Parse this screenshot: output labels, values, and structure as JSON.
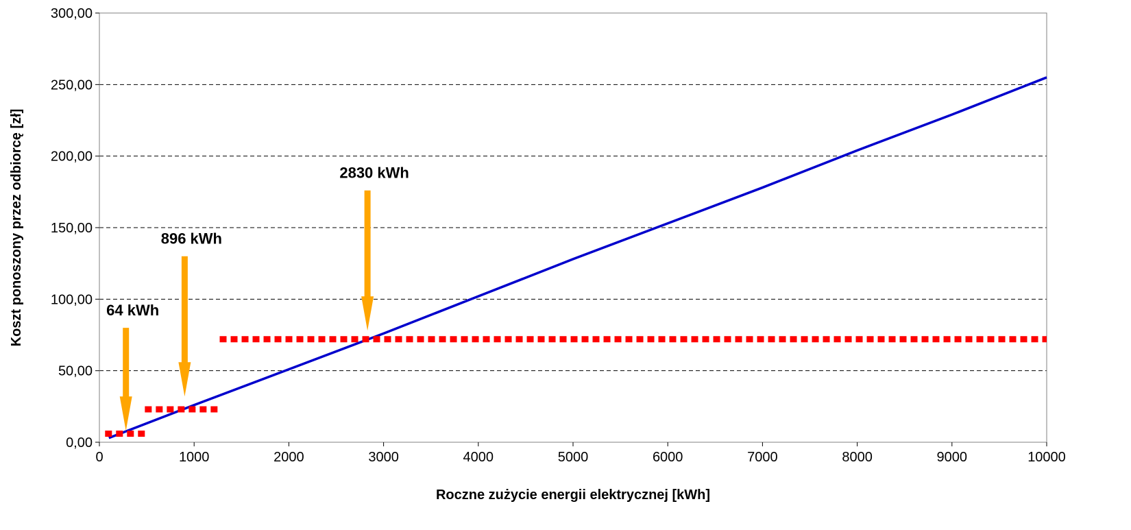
{
  "chart_data": {
    "type": "line",
    "title": "",
    "xlabel": "Roczne zużycie energii elektrycznej [kWh]",
    "ylabel": "Koszt ponoszony przez odbiorcę [zł]",
    "xlim": [
      0,
      10000
    ],
    "ylim": [
      0,
      300
    ],
    "x_ticks": [
      "0",
      "1000",
      "2000",
      "3000",
      "4000",
      "5000",
      "6000",
      "7000",
      "8000",
      "9000",
      "10000"
    ],
    "y_ticks": [
      "0,00",
      "50,00",
      "100,00",
      "150,00",
      "200,00",
      "250,00",
      "300,00"
    ],
    "grid": "horizontal dashed",
    "legend": "none",
    "series": [
      {
        "kind": "line",
        "color": "#0000cc",
        "x": [
          100,
          1000,
          2000,
          3000,
          4000,
          5000,
          6000,
          7000,
          8000,
          9000,
          10000
        ],
        "y": [
          3,
          26,
          51,
          76,
          102,
          128,
          153,
          178,
          204,
          229,
          255
        ]
      },
      {
        "kind": "step-dashed",
        "color": "#ff0000",
        "segments": [
          {
            "x_start": 60,
            "x_end": 480,
            "y": 6
          },
          {
            "x_start": 480,
            "x_end": 1250,
            "y": 23
          },
          {
            "x_start": 1270,
            "x_end": 10000,
            "y": 72
          }
        ]
      }
    ],
    "annotations": [
      {
        "label": "64 kWh",
        "x": 280,
        "y_top": 80,
        "y_tip": 8,
        "color": "#ffa500"
      },
      {
        "label": "896 kWh",
        "x": 900,
        "y_top": 130,
        "y_tip": 32,
        "color": "#ffa500"
      },
      {
        "label": "2830 kWh",
        "x": 2830,
        "y_top": 176,
        "y_tip": 78,
        "color": "#ffa500"
      }
    ]
  }
}
